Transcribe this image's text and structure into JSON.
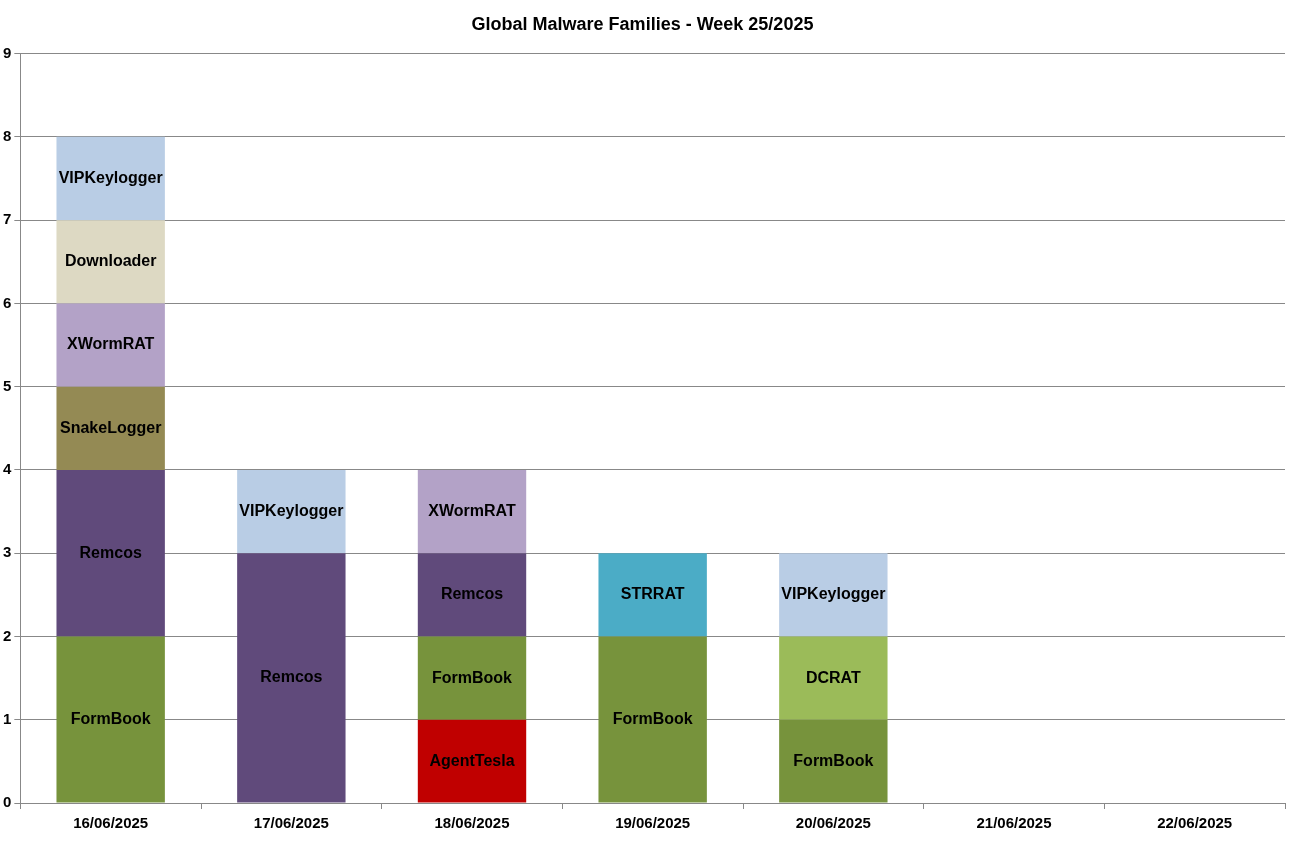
{
  "chart_data": {
    "type": "bar",
    "title": "Global Malware Families - Week 25/2025",
    "stacked": true,
    "categories": [
      "16/06/2025",
      "17/06/2025",
      "18/06/2025",
      "19/06/2025",
      "20/06/2025",
      "21/06/2025",
      "22/06/2025"
    ],
    "series": [
      {
        "name": "AgentTesla",
        "color": "#c00000",
        "values": [
          null,
          null,
          1,
          null,
          null,
          null,
          null
        ]
      },
      {
        "name": "FormBook",
        "color": "#77933c",
        "values": [
          2,
          null,
          1,
          2,
          1,
          null,
          null
        ]
      },
      {
        "name": "Remcos",
        "color": "#604a7b",
        "values": [
          2,
          3,
          1,
          null,
          null,
          null,
          null
        ]
      },
      {
        "name": "SnakeLogger",
        "color": "#948a54",
        "values": [
          1,
          null,
          null,
          null,
          null,
          null,
          null
        ]
      },
      {
        "name": "STRRAT",
        "color": "#4bacc6",
        "values": [
          null,
          null,
          null,
          1,
          null,
          null,
          null
        ]
      },
      {
        "name": "DCRAT",
        "color": "#9bbb59",
        "values": [
          null,
          null,
          null,
          null,
          1,
          null,
          null
        ]
      },
      {
        "name": "XWormRAT",
        "color": "#b3a2c7",
        "values": [
          1,
          null,
          1,
          null,
          null,
          null,
          null
        ]
      },
      {
        "name": "Downloader",
        "color": "#ddd9c3",
        "values": [
          1,
          null,
          null,
          null,
          null,
          null,
          null
        ]
      },
      {
        "name": "VIPKeylogger",
        "color": "#b9cde5",
        "values": [
          1,
          1,
          null,
          null,
          1,
          null,
          null
        ]
      }
    ],
    "ylim": [
      0,
      9
    ],
    "yticks": [
      0,
      1,
      2,
      3,
      4,
      5,
      6,
      7,
      8,
      9
    ],
    "grid": "y"
  }
}
